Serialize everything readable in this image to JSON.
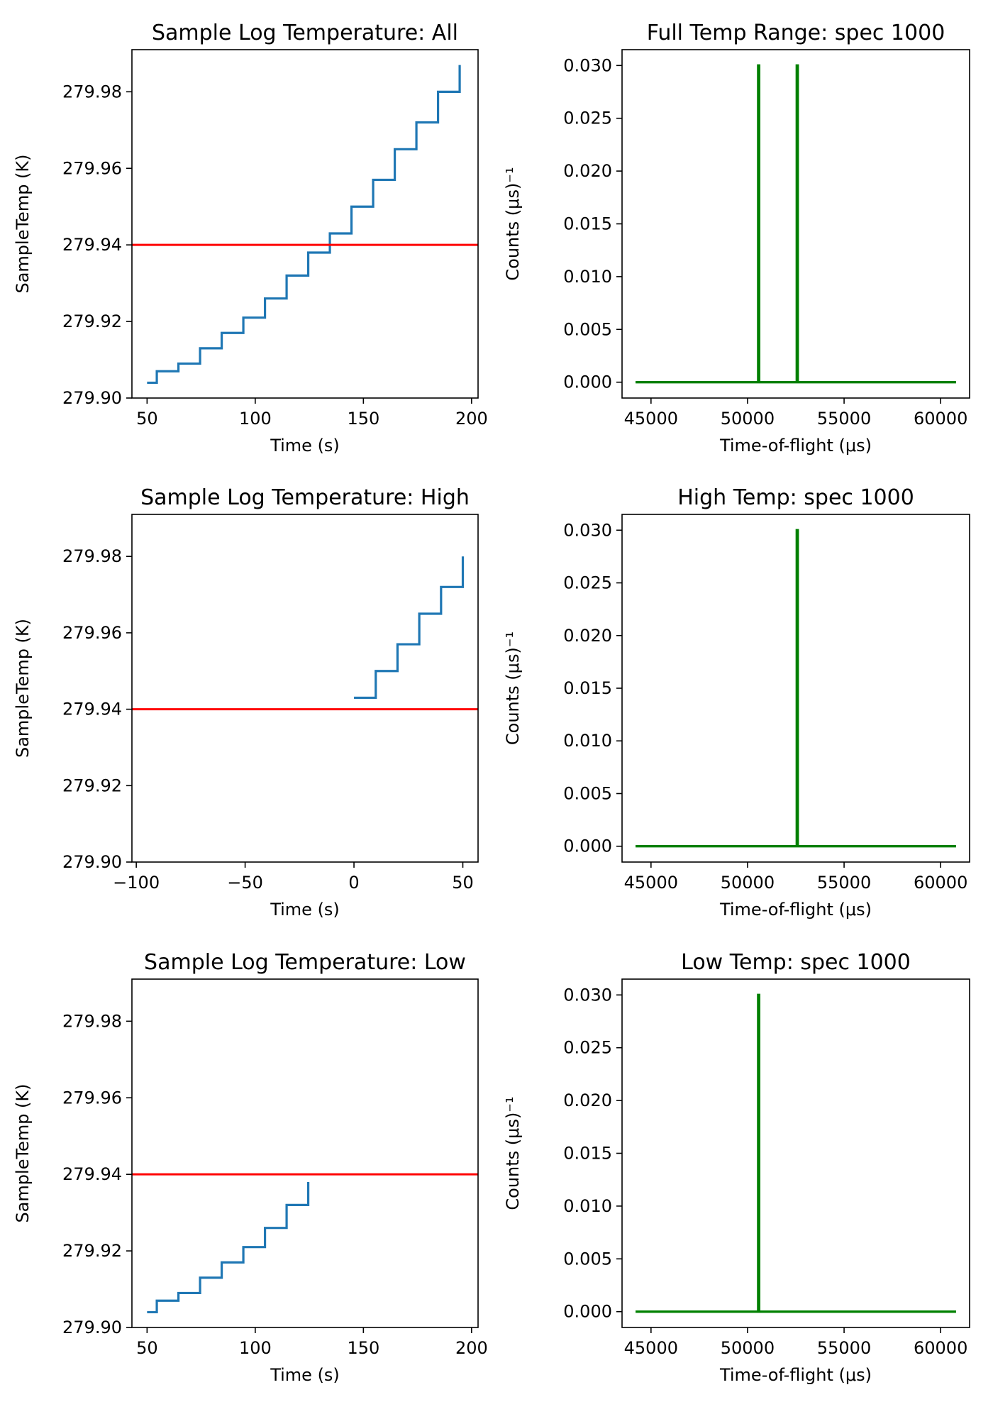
{
  "colors": {
    "temp_series": "#1f77b4",
    "threshold": "#ff0000",
    "spectrum": "#008000",
    "axes": "#000000"
  },
  "chart_data": [
    {
      "id": "log_all",
      "type": "line",
      "title": "Sample Log Temperature: All",
      "xlabel": "Time (s)",
      "ylabel": "SampleTemp (K)",
      "xlim": [
        43,
        203
      ],
      "ylim": [
        279.9,
        279.991
      ],
      "xticks": [
        50,
        100,
        150,
        200
      ],
      "xtick_labels": [
        "50",
        "100",
        "150",
        "200"
      ],
      "yticks": [
        279.9,
        279.92,
        279.94,
        279.96,
        279.98
      ],
      "ytick_labels": [
        "279.90",
        "279.92",
        "279.94",
        "279.96",
        "279.98"
      ],
      "step": true,
      "x": [
        50,
        54.5,
        54.5,
        64.5,
        64.5,
        74.5,
        74.5,
        84.5,
        84.5,
        94.5,
        94.5,
        104.5,
        104.5,
        114.5,
        114.5,
        124.5,
        124.5,
        134.5,
        134.5,
        144.5,
        144.5,
        154.5,
        154.5,
        164.5,
        164.5,
        174.5,
        174.5,
        184.5,
        184.5,
        194.5,
        194.5
      ],
      "y": [
        279.904,
        279.904,
        279.907,
        279.907,
        279.909,
        279.909,
        279.913,
        279.913,
        279.917,
        279.917,
        279.921,
        279.921,
        279.926,
        279.926,
        279.932,
        279.932,
        279.938,
        279.938,
        279.943,
        279.943,
        279.95,
        279.95,
        279.957,
        279.957,
        279.965,
        279.965,
        279.972,
        279.972,
        279.98,
        279.98,
        279.987
      ],
      "hline": 279.94
    },
    {
      "id": "spec_all",
      "type": "line",
      "title": "Full Temp Range: spec 1000",
      "xlabel": "Time-of-flight (μs)",
      "ylabel": "Counts (μs)⁻¹",
      "xlim": [
        43500,
        61500
      ],
      "ylim": [
        -0.0015,
        0.0315
      ],
      "xticks": [
        45000,
        50000,
        55000,
        60000
      ],
      "xtick_labels": [
        "45000",
        "50000",
        "55000",
        "60000"
      ],
      "yticks": [
        0,
        0.005,
        0.01,
        0.015,
        0.02,
        0.025,
        0.03
      ],
      "ytick_labels": [
        "0.000",
        "0.005",
        "0.010",
        "0.015",
        "0.020",
        "0.025",
        "0.030"
      ],
      "x": [
        44200,
        50550,
        50550,
        50600,
        50600,
        52550,
        52550,
        52600,
        52600,
        60800
      ],
      "y": [
        0,
        0,
        0.03,
        0.03,
        0,
        0,
        0.03,
        0.03,
        0,
        0
      ]
    },
    {
      "id": "log_high",
      "type": "line",
      "title": "Sample Log Temperature: High",
      "xlabel": "Time (s)",
      "ylabel": "SampleTemp (K)",
      "xlim": [
        -102,
        57
      ],
      "ylim": [
        279.9,
        279.991
      ],
      "xticks": [
        -100,
        -50,
        0,
        50
      ],
      "xtick_labels": [
        "−100",
        "−50",
        "0",
        "50"
      ],
      "yticks": [
        279.9,
        279.92,
        279.94,
        279.96,
        279.98
      ],
      "ytick_labels": [
        "279.90",
        "279.92",
        "279.94",
        "279.96",
        "279.98"
      ],
      "step": true,
      "x": [
        0,
        10,
        10,
        20,
        20,
        30,
        30,
        40,
        40,
        50,
        50
      ],
      "y": [
        279.943,
        279.943,
        279.95,
        279.95,
        279.957,
        279.957,
        279.965,
        279.965,
        279.972,
        279.972,
        279.98
      ],
      "hline": 279.94
    },
    {
      "id": "spec_high",
      "type": "line",
      "title": "High Temp: spec 1000",
      "xlabel": "Time-of-flight (μs)",
      "ylabel": "Counts (μs)⁻¹",
      "xlim": [
        43500,
        61500
      ],
      "ylim": [
        -0.0015,
        0.0315
      ],
      "xticks": [
        45000,
        50000,
        55000,
        60000
      ],
      "xtick_labels": [
        "45000",
        "50000",
        "55000",
        "60000"
      ],
      "yticks": [
        0,
        0.005,
        0.01,
        0.015,
        0.02,
        0.025,
        0.03
      ],
      "ytick_labels": [
        "0.000",
        "0.005",
        "0.010",
        "0.015",
        "0.020",
        "0.025",
        "0.030"
      ],
      "x": [
        44200,
        52550,
        52550,
        52600,
        52600,
        60800
      ],
      "y": [
        0,
        0,
        0.03,
        0.03,
        0,
        0
      ]
    },
    {
      "id": "log_low",
      "type": "line",
      "title": "Sample Log Temperature: Low",
      "xlabel": "Time (s)",
      "ylabel": "SampleTemp (K)",
      "xlim": [
        43,
        203
      ],
      "ylim": [
        279.9,
        279.991
      ],
      "xticks": [
        50,
        100,
        150,
        200
      ],
      "xtick_labels": [
        "50",
        "100",
        "150",
        "200"
      ],
      "yticks": [
        279.9,
        279.92,
        279.94,
        279.96,
        279.98
      ],
      "ytick_labels": [
        "279.90",
        "279.92",
        "279.94",
        "279.96",
        "279.98"
      ],
      "step": true,
      "x": [
        50,
        54.5,
        54.5,
        64.5,
        64.5,
        74.5,
        74.5,
        84.5,
        84.5,
        94.5,
        94.5,
        104.5,
        104.5,
        114.5,
        114.5,
        124.5,
        124.5
      ],
      "y": [
        279.904,
        279.904,
        279.907,
        279.907,
        279.909,
        279.909,
        279.913,
        279.913,
        279.917,
        279.917,
        279.921,
        279.921,
        279.926,
        279.926,
        279.932,
        279.932,
        279.938
      ],
      "hline": 279.94
    },
    {
      "id": "spec_low",
      "type": "line",
      "title": "Low Temp: spec 1000",
      "xlabel": "Time-of-flight (μs)",
      "ylabel": "Counts (μs)⁻¹",
      "xlim": [
        43500,
        61500
      ],
      "ylim": [
        -0.0015,
        0.0315
      ],
      "xticks": [
        45000,
        50000,
        55000,
        60000
      ],
      "xtick_labels": [
        "45000",
        "50000",
        "55000",
        "60000"
      ],
      "yticks": [
        0,
        0.005,
        0.01,
        0.015,
        0.02,
        0.025,
        0.03
      ],
      "ytick_labels": [
        "0.000",
        "0.005",
        "0.010",
        "0.015",
        "0.020",
        "0.025",
        "0.030"
      ],
      "x": [
        44200,
        50550,
        50550,
        50600,
        50600,
        60800
      ],
      "y": [
        0,
        0,
        0.03,
        0.03,
        0,
        0
      ]
    }
  ]
}
